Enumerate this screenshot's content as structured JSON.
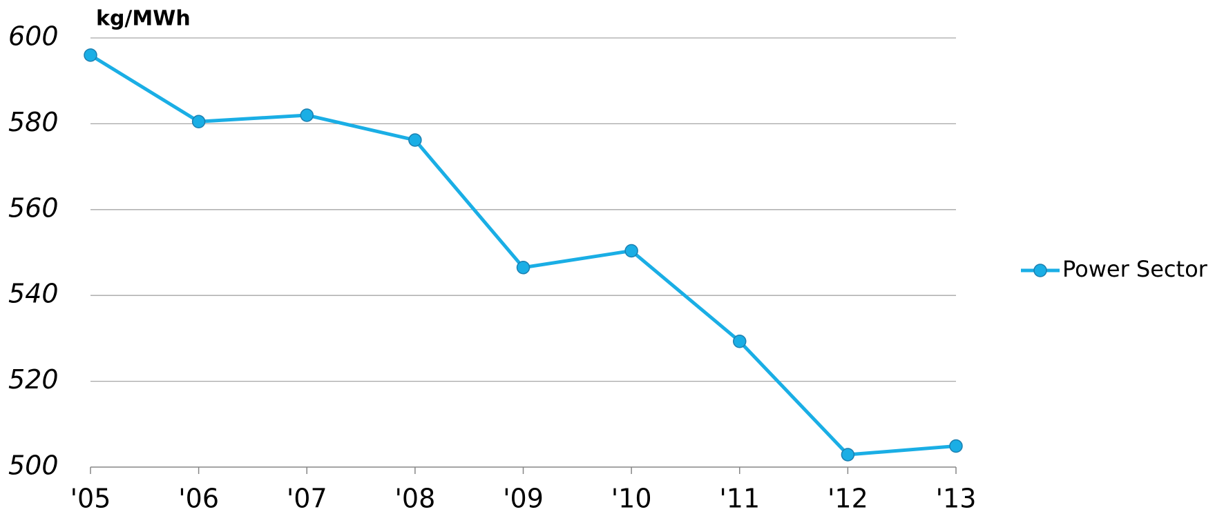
{
  "chart_data": {
    "type": "line",
    "y_label": "kg/MWh",
    "categories": [
      "'05",
      "'06",
      "'07",
      "'08",
      "'09",
      "'10",
      "'11",
      "'12",
      "'13"
    ],
    "series": [
      {
        "name": "Power Sector",
        "color": "#1aaee5",
        "values": [
          596,
          580.5,
          582,
          576.2,
          546.5,
          550.4,
          529.3,
          502.9,
          504.9
        ]
      }
    ],
    "ylim": [
      500,
      600
    ],
    "yticks": [
      500,
      520,
      540,
      560,
      580,
      600
    ],
    "grid": true,
    "legend": "right"
  }
}
